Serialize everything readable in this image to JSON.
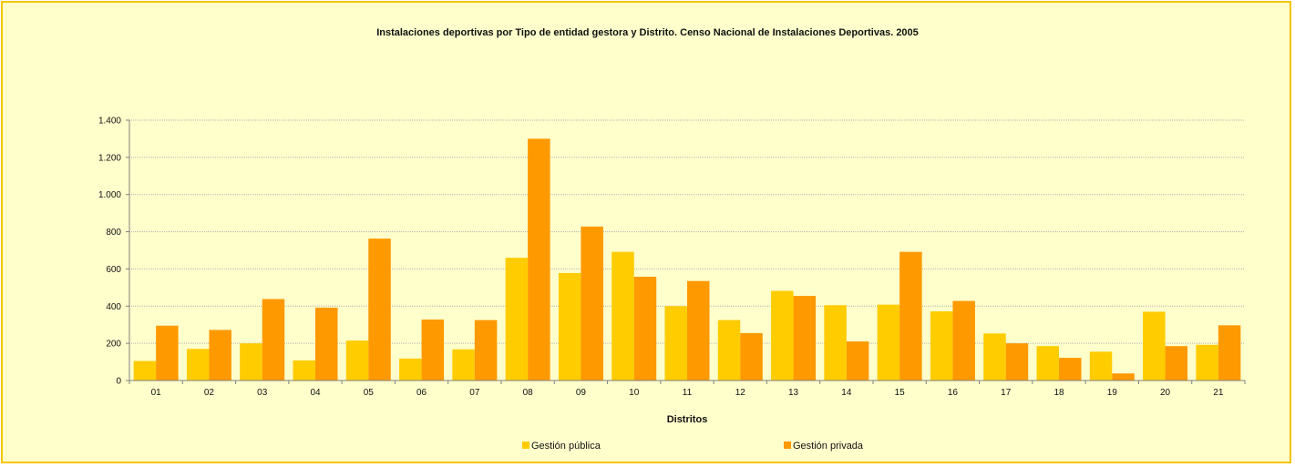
{
  "chart_data": {
    "type": "bar",
    "title": "Instalaciones deportivas por Tipo de entidad gestora y Distrito. Censo Nacional de Instalaciones Deportivas. 2005",
    "xlabel": "Distritos",
    "ylabel": "",
    "ylim": [
      0,
      1400
    ],
    "yticks": [
      0,
      200,
      400,
      600,
      800,
      1000,
      1200,
      1400
    ],
    "ytick_labels": [
      "0",
      "200",
      "400",
      "600",
      "800",
      "1.000",
      "1.200",
      "1.400"
    ],
    "grid": true,
    "legend_position": "bottom",
    "categories": [
      "01",
      "02",
      "03",
      "04",
      "05",
      "06",
      "07",
      "08",
      "09",
      "10",
      "11",
      "12",
      "13",
      "14",
      "15",
      "16",
      "17",
      "18",
      "19",
      "20",
      "21"
    ],
    "series": [
      {
        "name": "Gestión pública",
        "color": "#ffcc00",
        "values": [
          105,
          170,
          200,
          108,
          215,
          118,
          168,
          660,
          578,
          692,
          400,
          325,
          482,
          405,
          408,
          372,
          253,
          185,
          155,
          370,
          192
        ]
      },
      {
        "name": "Gestión privada",
        "color": "#ff9900",
        "values": [
          295,
          272,
          438,
          392,
          763,
          328,
          325,
          1300,
          828,
          558,
          535,
          255,
          455,
          210,
          692,
          428,
          200,
          122,
          38,
          185,
          297
        ]
      }
    ]
  }
}
